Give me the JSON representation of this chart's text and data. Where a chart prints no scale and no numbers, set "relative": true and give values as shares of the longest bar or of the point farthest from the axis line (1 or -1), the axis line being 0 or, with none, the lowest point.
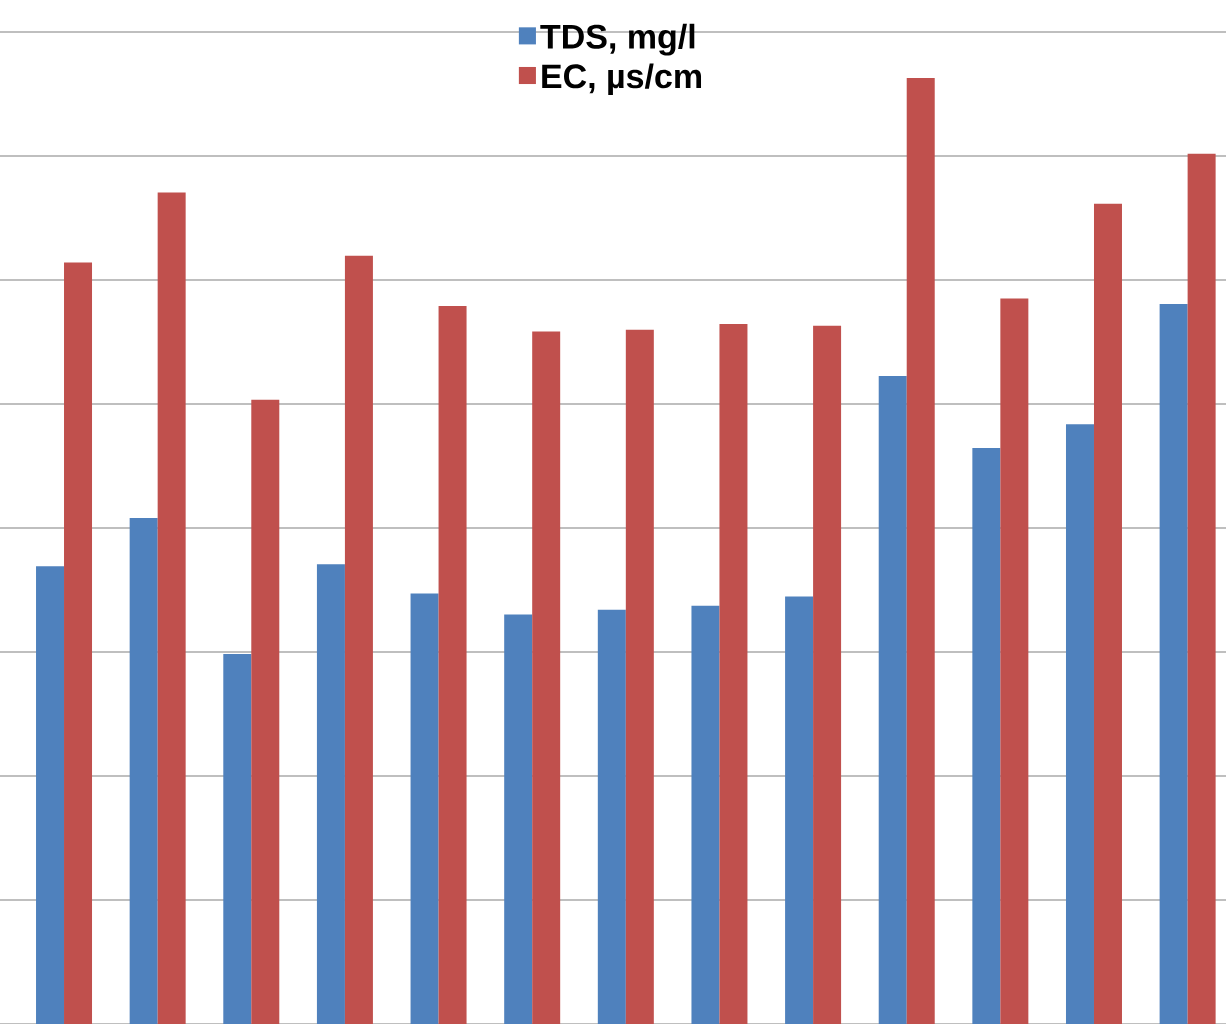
{
  "chart_data": {
    "type": "bar",
    "relative": true,
    "categories": [
      null,
      null,
      null,
      null,
      null,
      null,
      null,
      null,
      null,
      null,
      null,
      null,
      null
    ],
    "grid": "y",
    "legend": "top",
    "series": [
      {
        "name": "TDS, mg/l",
        "color": "#4f81bd",
        "values": [
          0.484,
          0.535,
          0.391,
          0.486,
          0.455,
          0.433,
          0.438,
          0.442,
          0.452,
          0.685,
          0.609,
          0.634,
          0.761
        ]
      },
      {
        "name": "EC, µs/cm",
        "color": "#c0504d",
        "values": [
          0.805,
          0.879,
          0.66,
          0.812,
          0.759,
          0.732,
          0.734,
          0.74,
          0.738,
          1,
          0.767,
          0.867,
          0.92
        ]
      }
    ]
  }
}
